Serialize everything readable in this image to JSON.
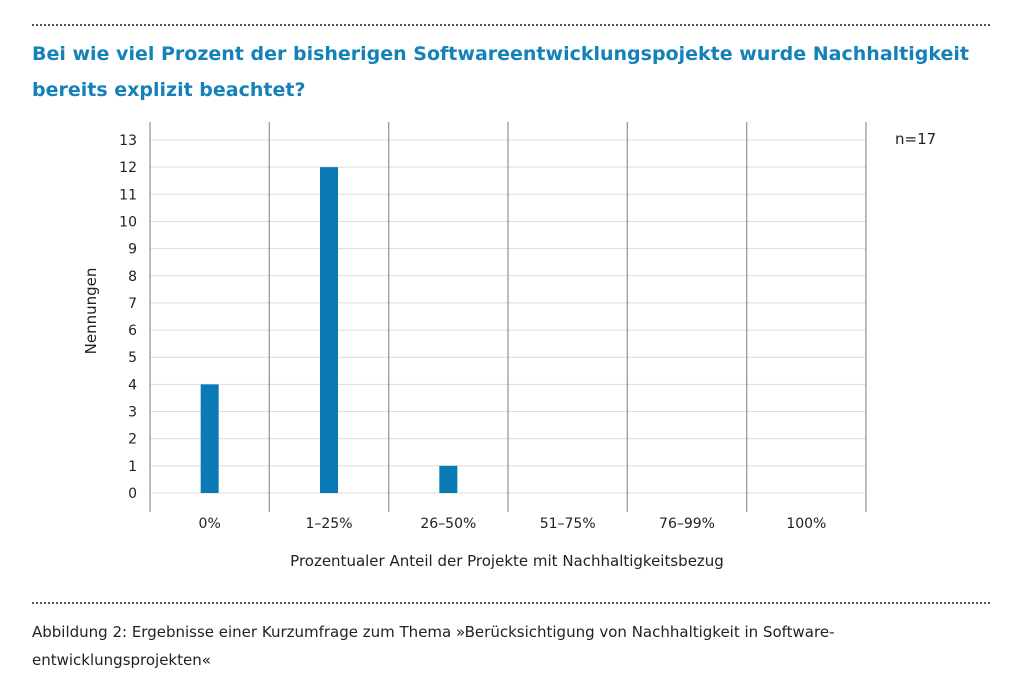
{
  "header": {
    "title": "Bei wie viel Prozent der bisherigen Softwareentwicklungspojekte wurde Nachhaltigkeit bereits explizit beachtet?"
  },
  "caption": {
    "text": "Abbildung 2: Ergebnisse einer Kurzumfrage zum Thema »Berücksichtigung von Nachhaltigkeit in Software-entwicklungsprojekten«"
  },
  "chart_data": {
    "type": "bar",
    "title": "Bei wie viel Prozent der bisherigen Softwareentwicklungspojekte wurde Nachhaltigkeit bereits explizit beachtet?",
    "xlabel": "Prozentualer Anteil der Projekte mit Nachhaltigkeitsbezug",
    "ylabel": "Nennungen",
    "categories": [
      "0%",
      "1–25%",
      "26–50%",
      "51–75%",
      "76–99%",
      "100%"
    ],
    "values": [
      4,
      12,
      1,
      0,
      0,
      0
    ],
    "ylim": [
      0,
      13
    ],
    "yticks": [
      0,
      1,
      2,
      3,
      4,
      5,
      6,
      7,
      8,
      9,
      10,
      11,
      12,
      13
    ],
    "annotation": "n=17",
    "grid": true,
    "colors": {
      "bar": "#0a7ab5",
      "grid": "#dcdcdc",
      "divider": "#9a9a9a",
      "title": "#1482b8"
    }
  }
}
